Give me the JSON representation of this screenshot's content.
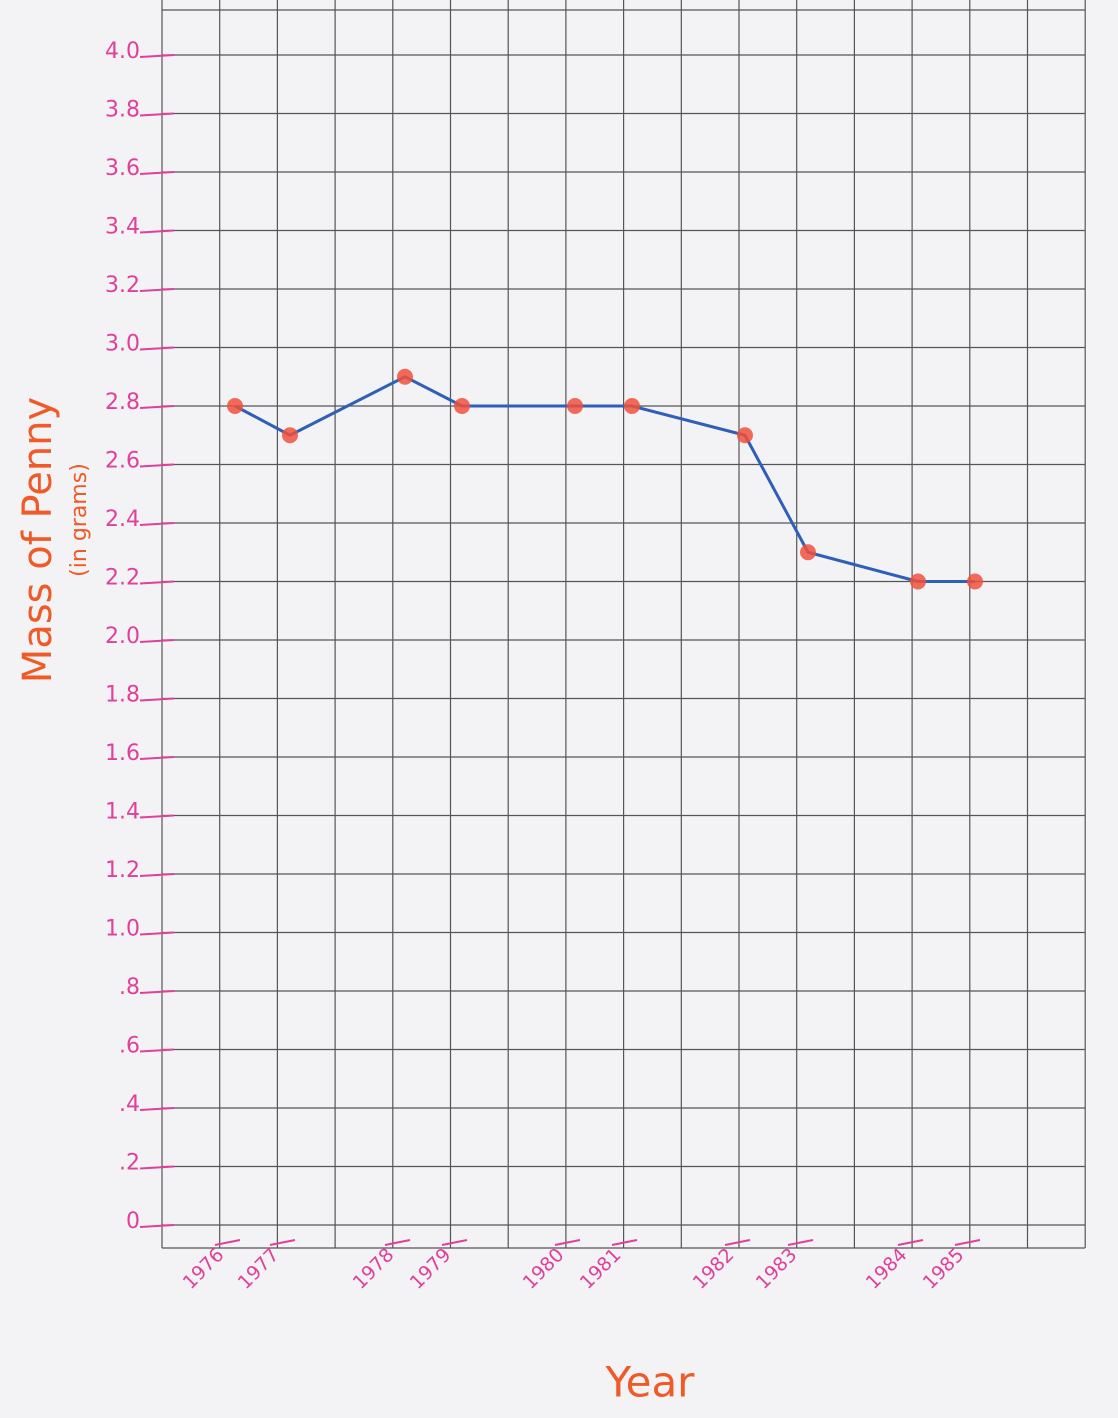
{
  "chart_data": {
    "type": "line",
    "y_label": "Mass of Penny",
    "y_sublabel": "(in grams)",
    "x_label": "Year",
    "categories": [
      "1976",
      "1977",
      "1978",
      "1979",
      "1980",
      "1981",
      "1982",
      "1983",
      "1984",
      "1985"
    ],
    "values": [
      2.8,
      2.7,
      2.9,
      2.8,
      2.8,
      2.8,
      2.7,
      2.3,
      2.2,
      2.2
    ],
    "line_color": "#2f5fb8",
    "marker_color": "#f0503c",
    "ylim": [
      0,
      4
    ],
    "yticks": [
      0,
      {
        "value": 0.2,
        "label": ".2"
      },
      {
        "value": 0.4,
        "label": ".4"
      },
      {
        "value": 0.6,
        "label": ".6"
      },
      {
        "value": 0.8,
        "label": ".8"
      },
      {
        "value": 1,
        "label": "1.0"
      },
      1.2,
      1.4,
      1.6,
      1.8,
      {
        "value": 2,
        "label": "2.0"
      },
      2.2,
      2.4,
      2.6,
      2.8,
      {
        "value": 3,
        "label": "3.0"
      },
      3.2,
      3.4,
      3.6,
      3.8,
      {
        "value": 4,
        "label": "4.0"
      }
    ],
    "grid": true
  }
}
